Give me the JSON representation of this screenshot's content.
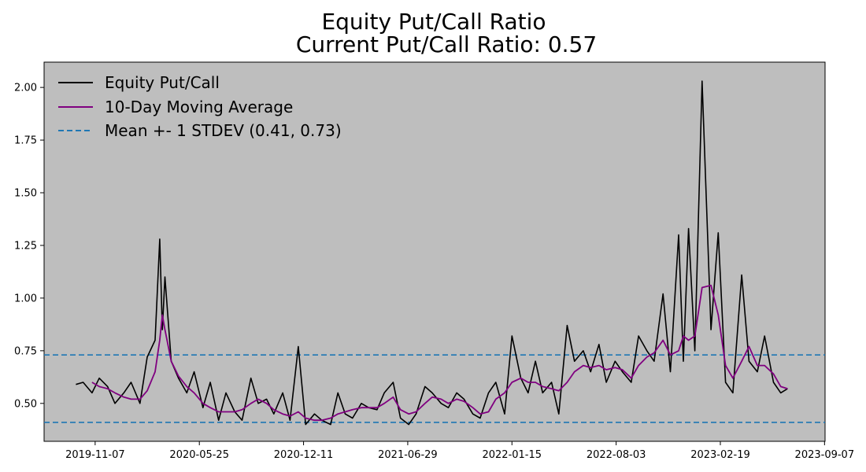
{
  "chart_data": {
    "type": "line",
    "title": "Equity Put/Call Ratio",
    "subtitle": "Current Put/Call Ratio: 0.57",
    "subtitle_color": "#800080",
    "plot_background": "#bebebe",
    "grid": false,
    "legend_position": "top-left",
    "xlabel": "",
    "ylabel": "",
    "x_ticks": [
      "2019-11-07",
      "2020-05-25",
      "2020-12-11",
      "2021-06-29",
      "2022-01-15",
      "2022-08-03",
      "2023-02-19",
      "2023-09-07"
    ],
    "xlim": [
      "2019-08-01",
      "2023-09-08"
    ],
    "y_ticks": [
      "0.50",
      "0.75",
      "1.00",
      "1.25",
      "1.50",
      "1.75",
      "2.00"
    ],
    "ylim": [
      0.32,
      2.12
    ],
    "x": [
      "2019-10-01",
      "2019-10-15",
      "2019-11-01",
      "2019-11-15",
      "2019-12-01",
      "2019-12-15",
      "2020-01-01",
      "2020-01-15",
      "2020-02-01",
      "2020-02-15",
      "2020-03-01",
      "2020-03-10",
      "2020-03-15",
      "2020-03-20",
      "2020-04-01",
      "2020-04-15",
      "2020-05-01",
      "2020-05-15",
      "2020-06-01",
      "2020-06-15",
      "2020-07-01",
      "2020-07-15",
      "2020-08-01",
      "2020-08-15",
      "2020-09-01",
      "2020-09-15",
      "2020-10-01",
      "2020-10-15",
      "2020-11-01",
      "2020-11-15",
      "2020-12-01",
      "2020-12-15",
      "2021-01-01",
      "2021-01-15",
      "2021-02-01",
      "2021-02-15",
      "2021-03-01",
      "2021-03-15",
      "2021-04-01",
      "2021-04-15",
      "2021-05-01",
      "2021-05-15",
      "2021-06-01",
      "2021-06-15",
      "2021-07-01",
      "2021-07-15",
      "2021-08-01",
      "2021-08-15",
      "2021-09-01",
      "2021-09-15",
      "2021-10-01",
      "2021-10-15",
      "2021-11-01",
      "2021-11-15",
      "2021-12-01",
      "2021-12-15",
      "2022-01-01",
      "2022-01-15",
      "2022-02-01",
      "2022-02-15",
      "2022-03-01",
      "2022-03-15",
      "2022-04-01",
      "2022-04-15",
      "2022-05-01",
      "2022-05-15",
      "2022-06-01",
      "2022-06-15",
      "2022-07-01",
      "2022-07-15",
      "2022-08-01",
      "2022-08-15",
      "2022-09-01",
      "2022-09-15",
      "2022-10-01",
      "2022-10-15",
      "2022-11-01",
      "2022-11-15",
      "2022-12-01",
      "2022-12-10",
      "2022-12-20",
      "2023-01-01",
      "2023-01-15",
      "2023-02-01",
      "2023-02-15",
      "2023-03-01",
      "2023-03-15",
      "2023-04-01",
      "2023-04-15",
      "2023-05-01",
      "2023-05-15",
      "2023-06-01",
      "2023-06-15",
      "2023-06-28"
    ],
    "series": [
      {
        "name": "Equity Put/Call",
        "color": "#000000",
        "values": [
          0.59,
          0.6,
          0.55,
          0.62,
          0.58,
          0.5,
          0.55,
          0.6,
          0.5,
          0.72,
          0.8,
          1.28,
          0.85,
          1.1,
          0.7,
          0.62,
          0.55,
          0.65,
          0.48,
          0.6,
          0.42,
          0.55,
          0.46,
          0.42,
          0.62,
          0.5,
          0.52,
          0.45,
          0.55,
          0.42,
          0.77,
          0.4,
          0.45,
          0.42,
          0.4,
          0.55,
          0.45,
          0.43,
          0.5,
          0.48,
          0.47,
          0.55,
          0.6,
          0.43,
          0.4,
          0.45,
          0.58,
          0.55,
          0.5,
          0.48,
          0.55,
          0.52,
          0.45,
          0.43,
          0.55,
          0.6,
          0.45,
          0.82,
          0.62,
          0.55,
          0.7,
          0.55,
          0.6,
          0.45,
          0.87,
          0.7,
          0.75,
          0.65,
          0.78,
          0.6,
          0.7,
          0.65,
          0.6,
          0.82,
          0.75,
          0.7,
          1.02,
          0.65,
          1.3,
          0.7,
          1.33,
          0.75,
          2.03,
          0.85,
          1.31,
          0.6,
          0.55,
          1.11,
          0.7,
          0.65,
          0.82,
          0.6,
          0.55,
          0.57
        ]
      },
      {
        "name": "10-Day Moving Average",
        "color": "#800080",
        "values": [
          null,
          null,
          0.6,
          0.58,
          0.57,
          0.55,
          0.53,
          0.52,
          0.52,
          0.56,
          0.65,
          0.8,
          0.92,
          0.85,
          0.7,
          0.63,
          0.58,
          0.55,
          0.5,
          0.48,
          0.46,
          0.46,
          0.46,
          0.47,
          0.5,
          0.52,
          0.5,
          0.47,
          0.45,
          0.44,
          0.46,
          0.43,
          0.42,
          0.42,
          0.43,
          0.45,
          0.46,
          0.47,
          0.48,
          0.48,
          0.48,
          0.5,
          0.53,
          0.47,
          0.45,
          0.46,
          0.5,
          0.53,
          0.52,
          0.5,
          0.52,
          0.51,
          0.48,
          0.45,
          0.46,
          0.52,
          0.55,
          0.6,
          0.62,
          0.6,
          0.6,
          0.58,
          0.57,
          0.56,
          0.6,
          0.65,
          0.68,
          0.67,
          0.68,
          0.66,
          0.67,
          0.66,
          0.62,
          0.68,
          0.72,
          0.74,
          0.8,
          0.73,
          0.75,
          0.82,
          0.8,
          0.82,
          1.05,
          1.06,
          0.92,
          0.68,
          0.62,
          0.7,
          0.77,
          0.68,
          0.68,
          0.64,
          0.58,
          0.57
        ]
      }
    ],
    "reference_lines": [
      {
        "name": "Mean +- 1 STDEV (0.41, 0.73)",
        "values": [
          0.41,
          0.73
        ],
        "color": "#1f77b4",
        "style": "dashed"
      }
    ]
  }
}
